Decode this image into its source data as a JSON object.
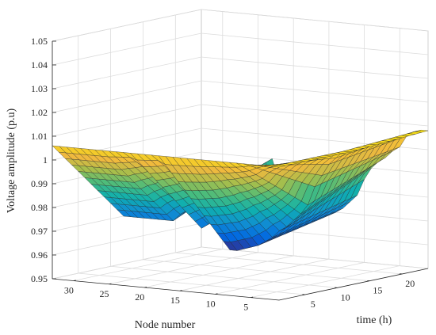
{
  "chart_data": {
    "type": "surface",
    "title": "",
    "xlabel": "time (h)",
    "ylabel": "Node number",
    "zlabel": "Voltage amplitude (p.u)",
    "x_ticks": [
      5,
      10,
      15,
      20
    ],
    "y_ticks": [
      30,
      25,
      20,
      15,
      10,
      5
    ],
    "z_ticks": [
      "0.95",
      "0.96",
      "0.97",
      "0.98",
      "0.99",
      "1",
      "1.01",
      "1.02",
      "1.03",
      "1.04",
      "1.05"
    ],
    "xlim": [
      1,
      24
    ],
    "ylim": [
      1,
      33
    ],
    "zlim": [
      0.95,
      1.05
    ],
    "grid": true,
    "colormap": "parula",
    "colormap_colors": [
      "#352a87",
      "#0268e1",
      "#108ed2",
      "#0fafaf",
      "#47bc7e",
      "#a5be4c",
      "#f0b93e",
      "#f9e014"
    ],
    "node_numbers": [
      1,
      2,
      3,
      4,
      5,
      6,
      7,
      8,
      9,
      10,
      11,
      12,
      13,
      14,
      15,
      16,
      17,
      18,
      19,
      20,
      21,
      22,
      23,
      24,
      25,
      26,
      27,
      28,
      29,
      30,
      31,
      32,
      33
    ],
    "hours": [
      1,
      2,
      3,
      4,
      5,
      6,
      7,
      8,
      9,
      10,
      11,
      12,
      13,
      14,
      15,
      16,
      17,
      18,
      19,
      20,
      21,
      22,
      23,
      24
    ],
    "voltage_at_hour_1": [
      1.006,
      1.006,
      1.006,
      1.006,
      1.006,
      1.006,
      1.006,
      1.006,
      1.006,
      1.006,
      1.006,
      1.006,
      1.006,
      1.006,
      1.006,
      1.006,
      1.006,
      1.006,
      1.006,
      1.006,
      1.006,
      1.006,
      1.006,
      1.006,
      1.006,
      1.006,
      1.006,
      1.006,
      1.006,
      1.006,
      1.006,
      1.006,
      1.006
    ],
    "voltage_at_hour_12": [
      1.006,
      1.006,
      1.003,
      1.0,
      0.995,
      0.99,
      0.982,
      0.978,
      0.975,
      0.972,
      0.97,
      0.967,
      0.965,
      0.963,
      0.962,
      0.961,
      0.96,
      0.96,
      0.975,
      0.972,
      0.97,
      0.968,
      0.978,
      0.975,
      0.973,
      0.97,
      0.97,
      0.97,
      0.97,
      0.97,
      0.97,
      0.97,
      0.97
    ],
    "voltage_at_hour_24": [
      1.008,
      1.008,
      1.007,
      1.005,
      1.0,
      0.998,
      0.995,
      0.993,
      0.99,
      0.985,
      0.978,
      0.975,
      0.972,
      0.97,
      0.97,
      0.97,
      0.97,
      0.97,
      0.985,
      0.983,
      0.982,
      0.98,
      0.99,
      0.988,
      0.985,
      0.985,
      0.985,
      0.985,
      0.985,
      0.985,
      0.985,
      0.985,
      0.985
    ]
  }
}
